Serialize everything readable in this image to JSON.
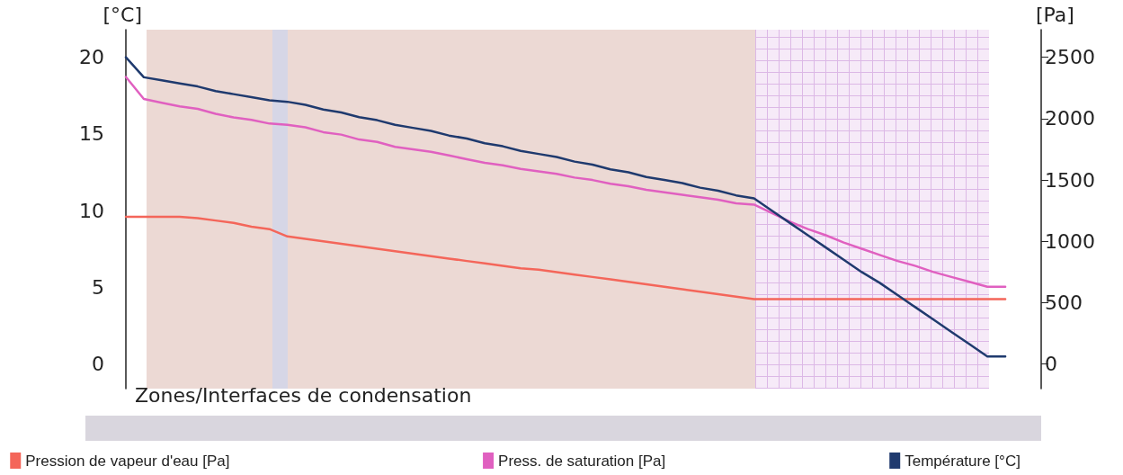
{
  "chart_data": {
    "type": "line",
    "ylabel": "[°C]",
    "y2label": "[Pa]",
    "categories": [
      null,
      null,
      null,
      null,
      null,
      null,
      null,
      null,
      null,
      null,
      null,
      null,
      null,
      null,
      null,
      null,
      null,
      null,
      null,
      null,
      null,
      null,
      null,
      null,
      null,
      null,
      null,
      null,
      null,
      null,
      null,
      null,
      null,
      null,
      null,
      null,
      null,
      null,
      null,
      null,
      null,
      null,
      null,
      null,
      null,
      null,
      null,
      null,
      null,
      null,
      null,
      null
    ],
    "series": [
      {
        "name": "Pression de vapeur d'eau [Pa]",
        "color": "#f4665a",
        "axis": "y2",
        "values": [
          1200,
          1200,
          1200,
          1200,
          1190,
          1170,
          1150,
          1120,
          1100,
          1040,
          1020,
          1000,
          980,
          960,
          940,
          920,
          900,
          880,
          860,
          840,
          820,
          800,
          780,
          770,
          750,
          730,
          710,
          690,
          670,
          650,
          630,
          610,
          590,
          570,
          550,
          530,
          530,
          530,
          530,
          530,
          530,
          530,
          530,
          530,
          530,
          530,
          530,
          530,
          530,
          530,
          null,
          null
        ]
      },
      {
        "name": "Press. de saturation [Pa]",
        "color": "#e060c0",
        "axis": "y2",
        "values": [
          2340,
          2160,
          2130,
          2100,
          2080,
          2040,
          2010,
          1990,
          1960,
          1950,
          1930,
          1890,
          1870,
          1830,
          1810,
          1770,
          1750,
          1730,
          1700,
          1670,
          1640,
          1620,
          1590,
          1570,
          1550,
          1520,
          1500,
          1470,
          1450,
          1420,
          1400,
          1380,
          1360,
          1340,
          1310,
          1300,
          1230,
          1160,
          1100,
          1050,
          990,
          940,
          890,
          840,
          800,
          750,
          710,
          670,
          630,
          630,
          null,
          null
        ]
      },
      {
        "name": "Température [°C]",
        "color": "#1f3a6e",
        "values": [
          20.0,
          18.7,
          18.5,
          18.3,
          18.1,
          17.8,
          17.6,
          17.4,
          17.2,
          17.1,
          16.9,
          16.6,
          16.4,
          16.1,
          15.9,
          15.6,
          15.4,
          15.2,
          14.9,
          14.7,
          14.4,
          14.2,
          13.9,
          13.7,
          13.5,
          13.2,
          13.0,
          12.7,
          12.5,
          12.2,
          12.0,
          11.8,
          11.5,
          11.3,
          11.0,
          10.8,
          10.0,
          9.2,
          8.4,
          7.6,
          6.8,
          6.0,
          5.3,
          4.5,
          3.7,
          2.9,
          2.1,
          1.3,
          0.5,
          0.5,
          null,
          null
        ]
      }
    ],
    "ylim": [
      -1.6,
      21.8
    ],
    "yticks": [
      0,
      5,
      10,
      15,
      20
    ],
    "y2lim": [
      -200,
      2725
    ],
    "y2ticks": [
      0,
      500,
      1000,
      1500,
      2000,
      2500
    ],
    "annotations": [
      "Zones/Interfaces de condensation"
    ],
    "legend": "bottom",
    "grid": false,
    "marker": "none",
    "line_style": "solid"
  }
}
